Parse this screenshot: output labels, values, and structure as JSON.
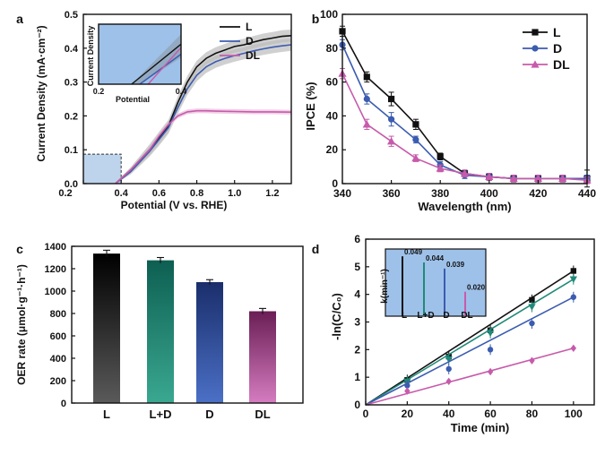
{
  "colors": {
    "L": "#111111",
    "D": "#3b5cb0",
    "DL": "#c75bab",
    "LD": "#1f8a78",
    "shade": "#bcbcbc",
    "highlight": "#a8c4e6",
    "inset_bg": "#9ec1e9"
  },
  "chart_data": [
    {
      "panel": "a",
      "type": "line",
      "xlabel": "Potential (V vs. RHE)",
      "ylabel": "Current Density (mA·cm⁻²)",
      "xlim": [
        0.2,
        1.3
      ],
      "ylim": [
        0,
        0.5
      ],
      "xticks": [
        "0.2",
        "0.4",
        "0.6",
        "0.8",
        "1.0",
        "1.2"
      ],
      "yticks": [
        "0.0",
        "0.1",
        "0.2",
        "0.3",
        "0.4",
        "0.5"
      ],
      "legend": [
        "L",
        "D",
        "DL"
      ],
      "series": [
        {
          "name": "L",
          "x": [
            0.37,
            0.45,
            0.5,
            0.55,
            0.6,
            0.65,
            0.7,
            0.75,
            0.8,
            0.85,
            0.9,
            0.95,
            1.0,
            1.05,
            1.1,
            1.15,
            1.2,
            1.25,
            1.3
          ],
          "y": [
            0.0,
            0.04,
            0.07,
            0.1,
            0.135,
            0.17,
            0.24,
            0.3,
            0.345,
            0.37,
            0.385,
            0.395,
            0.405,
            0.41,
            0.418,
            0.425,
            0.43,
            0.435,
            0.437
          ]
        },
        {
          "name": "D",
          "x": [
            0.37,
            0.45,
            0.5,
            0.55,
            0.6,
            0.65,
            0.7,
            0.75,
            0.8,
            0.85,
            0.9,
            0.95,
            1.0,
            1.05,
            1.1,
            1.15,
            1.2,
            1.25,
            1.3
          ],
          "y": [
            0.0,
            0.035,
            0.065,
            0.095,
            0.13,
            0.165,
            0.225,
            0.28,
            0.32,
            0.345,
            0.36,
            0.37,
            0.378,
            0.385,
            0.392,
            0.398,
            0.403,
            0.407,
            0.41
          ]
        },
        {
          "name": "DL",
          "x": [
            0.37,
            0.45,
            0.5,
            0.55,
            0.6,
            0.65,
            0.7,
            0.75,
            0.8,
            0.85,
            0.9,
            1.0,
            1.1,
            1.2,
            1.3
          ],
          "y": [
            0.0,
            0.04,
            0.07,
            0.1,
            0.14,
            0.175,
            0.2,
            0.212,
            0.215,
            0.215,
            0.214,
            0.213,
            0.212,
            0.212,
            0.211
          ]
        }
      ],
      "inset": {
        "xlabel": "Potential",
        "ylabel": "Current Density",
        "xticks": [
          "0.2",
          "0.4"
        ],
        "xlim": [
          0.2,
          0.4
        ],
        "ylim": [
          0,
          0.09
        ],
        "series": [
          {
            "name": "L",
            "x": [
              0.28,
              0.4
            ],
            "y": [
              0.0,
              0.06
            ]
          },
          {
            "name": "D",
            "x": [
              0.3,
              0.4
            ],
            "y": [
              0.0,
              0.045
            ]
          },
          {
            "name": "DL",
            "x": [
              0.32,
              0.4
            ],
            "y": [
              0.0,
              0.055
            ]
          }
        ]
      }
    },
    {
      "panel": "b",
      "type": "line",
      "xlabel": "Wavelength (nm)",
      "ylabel": "IPCE (%)",
      "xlim": [
        340,
        440
      ],
      "ylim": [
        0,
        100
      ],
      "xticks": [
        "340",
        "360",
        "380",
        "400",
        "420",
        "440"
      ],
      "yticks": [
        "0",
        "20",
        "40",
        "60",
        "80",
        "100"
      ],
      "legend": [
        "L",
        "D",
        "DL"
      ],
      "x": [
        340,
        350,
        360,
        370,
        380,
        390,
        400,
        410,
        420,
        430,
        440
      ],
      "series": [
        {
          "name": "L",
          "marker": "square",
          "values": [
            90,
            63,
            50,
            35,
            16,
            6,
            4,
            3,
            3,
            3,
            3
          ],
          "errors": [
            3,
            3,
            4,
            3,
            2,
            2,
            2,
            2,
            2,
            2,
            5
          ]
        },
        {
          "name": "D",
          "marker": "circle",
          "values": [
            82,
            50,
            38,
            26,
            11,
            5,
            4,
            3,
            3,
            3,
            3
          ],
          "errors": [
            3,
            3,
            4,
            2,
            2,
            2,
            2,
            2,
            2,
            2,
            2
          ]
        },
        {
          "name": "DL",
          "marker": "triangle",
          "values": [
            65,
            35,
            25,
            15,
            9,
            6,
            4,
            3,
            3,
            3,
            2
          ],
          "errors": [
            3,
            3,
            3,
            2,
            2,
            2,
            2,
            2,
            2,
            2,
            2
          ]
        }
      ]
    },
    {
      "panel": "c",
      "type": "bar",
      "ylabel": "OER rate (μmol·g⁻¹·h⁻¹)",
      "ylim": [
        0,
        1400
      ],
      "yticks": [
        "0",
        "200",
        "400",
        "600",
        "800",
        "1000",
        "1200",
        "1400"
      ],
      "categories": [
        "L",
        "L+D",
        "D",
        "DL"
      ],
      "values": [
        1335,
        1275,
        1080,
        820
      ],
      "errors": [
        30,
        25,
        22,
        25
      ]
    },
    {
      "panel": "d",
      "type": "scatter",
      "xlabel": "Time (min)",
      "ylabel": "-ln(C/C₀)",
      "xlim": [
        0,
        110
      ],
      "ylim": [
        0,
        6
      ],
      "xticks": [
        "0",
        "20",
        "40",
        "60",
        "80",
        "100"
      ],
      "yticks": [
        "0",
        "1",
        "2",
        "3",
        "4",
        "5",
        "6"
      ],
      "x": [
        20,
        40,
        60,
        80,
        100
      ],
      "series": [
        {
          "name": "L",
          "marker": "square",
          "slope": 0.049,
          "values": [
            0.9,
            1.75,
            2.7,
            3.8,
            4.85
          ]
        },
        {
          "name": "L+D",
          "marker": "triangle-down",
          "slope": 0.044,
          "values": [
            0.85,
            1.65,
            2.6,
            3.55,
            4.55
          ]
        },
        {
          "name": "D",
          "marker": "circle",
          "slope": 0.039,
          "values": [
            0.7,
            1.3,
            2.0,
            2.95,
            3.9
          ]
        },
        {
          "name": "DL",
          "marker": "diamond",
          "slope": 0.02,
          "values": [
            0.5,
            0.85,
            1.2,
            1.6,
            2.05
          ]
        }
      ],
      "inset": {
        "ylabel": "k(min⁻¹)",
        "categories": [
          "L",
          "L+D",
          "D",
          "DL"
        ],
        "values": [
          0.049,
          0.044,
          0.039,
          0.02
        ],
        "labels": [
          "0.049",
          "0.044",
          "0.039",
          "0.020"
        ]
      }
    }
  ]
}
